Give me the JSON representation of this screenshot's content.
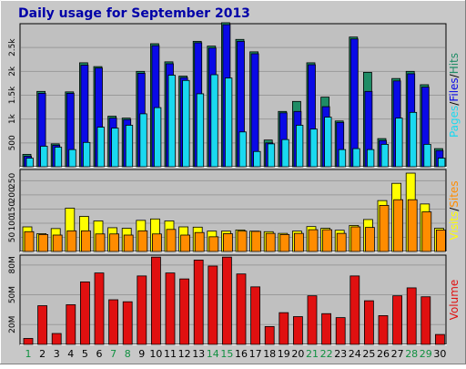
{
  "title": "Daily usage for September 2013",
  "colors": {
    "frame_bg": "#c8c8c8",
    "plot_bg": "#c0c0c0",
    "title": "#0000a8",
    "hits": "#1f8c66",
    "files": "#0a0ae6",
    "pages": "#19d9f0",
    "visits": "#ffff00",
    "sites": "#ff8c00",
    "volume": "#e01010",
    "weekday_label": "#000090",
    "weekend_label": "#109040",
    "legend_sep": "#000000"
  },
  "chart_data": [
    {
      "type": "bar",
      "panel": "top",
      "categories": [
        "1",
        "2",
        "3",
        "4",
        "5",
        "6",
        "7",
        "8",
        "9",
        "10",
        "11",
        "12",
        "13",
        "14",
        "15",
        "16",
        "17",
        "18",
        "19",
        "20",
        "21",
        "22",
        "23",
        "24",
        "25",
        "26",
        "27",
        "28",
        "29",
        "30"
      ],
      "weekend": [
        "1",
        "7",
        "8",
        "14",
        "15",
        "21",
        "22",
        "28",
        "29"
      ],
      "y_ticks": [
        "500",
        "1k",
        "1.5k",
        "2k",
        "2.5k"
      ],
      "ylim": [
        0,
        3000
      ],
      "legend": [
        "Pages",
        "Files",
        "Hits"
      ],
      "series": [
        {
          "name": "Hits",
          "values": [
            260,
            1580,
            480,
            1570,
            2180,
            2100,
            1060,
            1020,
            2000,
            2580,
            2200,
            1900,
            2630,
            2530,
            3020,
            2670,
            2410,
            560,
            1160,
            1370,
            2180,
            1460,
            960,
            2720,
            1980,
            590,
            1850,
            2000,
            1720,
            380
          ]
        },
        {
          "name": "Files",
          "values": [
            220,
            1540,
            450,
            1540,
            2130,
            2070,
            1020,
            990,
            1960,
            2540,
            2160,
            1870,
            2600,
            2490,
            2980,
            2630,
            2370,
            500,
            1130,
            1160,
            2140,
            1260,
            930,
            2680,
            1580,
            550,
            1800,
            1950,
            1670,
            340
          ]
        },
        {
          "name": "Pages",
          "values": [
            180,
            430,
            410,
            360,
            510,
            830,
            810,
            870,
            1110,
            1240,
            1920,
            1810,
            1530,
            1930,
            1860,
            730,
            320,
            480,
            570,
            870,
            790,
            1040,
            360,
            380,
            360,
            470,
            1020,
            1140,
            470,
            180
          ]
        }
      ]
    },
    {
      "type": "bar",
      "panel": "middle",
      "categories": [
        "1",
        "2",
        "3",
        "4",
        "5",
        "6",
        "7",
        "8",
        "9",
        "10",
        "11",
        "12",
        "13",
        "14",
        "15",
        "16",
        "17",
        "18",
        "19",
        "20",
        "21",
        "22",
        "23",
        "24",
        "25",
        "26",
        "27",
        "28",
        "29",
        "30"
      ],
      "y_ticks": [
        "50",
        "100",
        "150",
        "200",
        "250"
      ],
      "ylim": [
        0,
        290
      ],
      "legend": [
        "Visits",
        "Sites"
      ],
      "series": [
        {
          "name": "Visits",
          "values": [
            87,
            63,
            81,
            153,
            124,
            108,
            84,
            82,
            110,
            115,
            108,
            87,
            86,
            72,
            72,
            76,
            72,
            70,
            64,
            72,
            88,
            82,
            75,
            92,
            113,
            180,
            241,
            277,
            168,
            82
          ]
        },
        {
          "name": "Sites",
          "values": [
            70,
            60,
            58,
            73,
            73,
            62,
            62,
            58,
            73,
            62,
            78,
            58,
            67,
            52,
            63,
            72,
            71,
            64,
            60,
            64,
            77,
            77,
            64,
            87,
            85,
            163,
            183,
            183,
            140,
            76
          ]
        }
      ]
    },
    {
      "type": "bar",
      "panel": "bottom",
      "categories": [
        "1",
        "2",
        "3",
        "4",
        "5",
        "6",
        "7",
        "8",
        "9",
        "10",
        "11",
        "12",
        "13",
        "14",
        "15",
        "16",
        "17",
        "18",
        "19",
        "20",
        "21",
        "22",
        "23",
        "24",
        "25",
        "26",
        "27",
        "28",
        "29",
        "30"
      ],
      "y_ticks": [
        "20M",
        "50M",
        "80M"
      ],
      "ylim": [
        0,
        90
      ],
      "legend": [
        "Volume"
      ],
      "series": [
        {
          "name": "Volume",
          "values": [
            6,
            39,
            11,
            40,
            63,
            72,
            45,
            43,
            69,
            88,
            72,
            66,
            85,
            79,
            88,
            71,
            58,
            18,
            32,
            28,
            49,
            31,
            27,
            69,
            44,
            29,
            49,
            57,
            48,
            10
          ]
        }
      ]
    }
  ]
}
